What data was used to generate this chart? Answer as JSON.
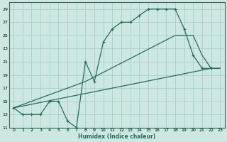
{
  "xlabel": "Humidex (Indice chaleur)",
  "bg_color": "#cce8e0",
  "grid_color": "#aad0c8",
  "line_color": "#2a6b5a",
  "xlim": [
    -0.5,
    23.5
  ],
  "ylim": [
    11,
    30
  ],
  "xticks": [
    0,
    1,
    2,
    3,
    4,
    5,
    6,
    7,
    8,
    9,
    10,
    11,
    12,
    13,
    14,
    15,
    16,
    17,
    18,
    19,
    20,
    21,
    22,
    23
  ],
  "yticks": [
    11,
    13,
    15,
    17,
    19,
    21,
    23,
    25,
    27,
    29
  ],
  "line1_x": [
    0,
    1,
    2,
    3,
    4,
    5,
    6,
    7,
    8,
    9,
    10,
    11,
    12,
    13,
    14,
    15,
    16,
    17,
    18,
    19,
    20,
    21,
    22
  ],
  "line1_y": [
    14,
    13,
    13,
    13,
    15,
    15,
    12,
    11,
    21,
    18,
    24,
    26,
    27,
    27,
    28,
    29,
    29,
    29,
    29,
    26,
    22,
    20,
    20
  ],
  "line2_x": [
    0,
    22,
    23
  ],
  "line2_y": [
    14,
    20,
    20
  ],
  "line3_x": [
    0,
    8,
    18,
    20,
    21,
    22,
    23
  ],
  "line3_y": [
    14,
    18,
    25,
    25,
    22,
    20,
    20
  ]
}
